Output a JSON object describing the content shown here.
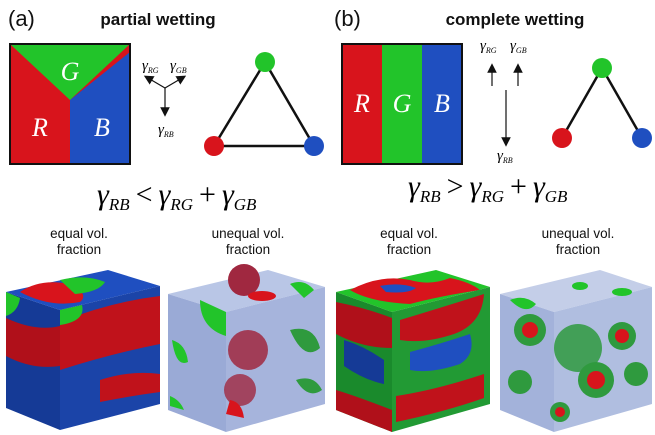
{
  "panel_a": {
    "label": "(a)",
    "title": "partial wetting",
    "square_labels": {
      "g": "G",
      "r": "R",
      "b": "B"
    },
    "tension_labels": {
      "rg": "γ",
      "rg_sub": "RG",
      "gb": "γ",
      "gb_sub": "GB",
      "rb": "γ",
      "rb_sub": "RB"
    },
    "inequality": {
      "lhs": "γ",
      "lhs_sub": "RB",
      "op": "<",
      "t1": "γ",
      "t1_sub": "RG",
      "plus": "+",
      "t2": "γ",
      "t2_sub": "GB"
    },
    "captions": {
      "left": "equal vol.\nfraction",
      "right": "unequal vol.\nfraction"
    }
  },
  "panel_b": {
    "label": "(b)",
    "title": "complete wetting",
    "square_labels": {
      "r": "R",
      "g": "G",
      "b": "B"
    },
    "tension_labels": {
      "rg": "γ",
      "rg_sub": "RG",
      "gb": "γ",
      "gb_sub": "GB",
      "rb": "γ",
      "rb_sub": "RB"
    },
    "inequality": {
      "lhs": "γ",
      "lhs_sub": "RB",
      "op": ">",
      "t1": "γ",
      "t1_sub": "RG",
      "plus": "+",
      "t2": "γ",
      "t2_sub": "GB"
    },
    "captions": {
      "left": "equal vol.\nfraction",
      "right": "unequal vol.\nfraction"
    }
  },
  "colors": {
    "red": "#d8141c",
    "green": "#22c42a",
    "blue": "#1f4fc0",
    "dark_red": "#9e0d12",
    "dark_green": "#0f8a1e",
    "dark_blue": "#153a96"
  }
}
